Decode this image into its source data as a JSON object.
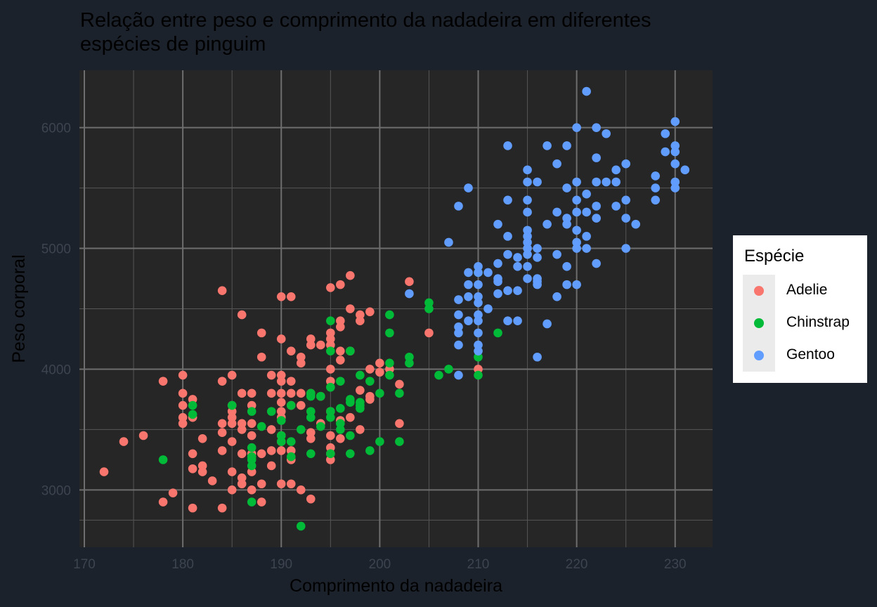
{
  "chart_data": {
    "type": "scatter",
    "title": "Relação entre peso e comprimento da nadadeira em diferentes\nespécies de pinguim",
    "xlabel": "Comprimento da nadadeira",
    "ylabel": "Peso corporal",
    "xlim": [
      169.5,
      233.8
    ],
    "ylim": [
      2525,
      6475
    ],
    "x_ticks": [
      170,
      180,
      190,
      200,
      210,
      220,
      230
    ],
    "y_ticks": [
      3000,
      4000,
      5000,
      6000
    ],
    "x_tick_labels": [
      "170",
      "180",
      "190",
      "200",
      "210",
      "220",
      "230"
    ],
    "y_tick_labels": [
      "3000",
      "4000",
      "5000",
      "6000"
    ],
    "grid": true,
    "legend_title": "Espécie",
    "legend_position": "right",
    "series": [
      {
        "name": "Adelie",
        "color": "#f8766d",
        "points": [
          [
            172,
            3150
          ],
          [
            174,
            3400
          ],
          [
            176,
            3450
          ],
          [
            178,
            3900
          ],
          [
            178,
            2900
          ],
          [
            179,
            2975
          ],
          [
            180,
            3950
          ],
          [
            180,
            3800
          ],
          [
            180,
            3700
          ],
          [
            180,
            3600
          ],
          [
            180,
            3550
          ],
          [
            181,
            3750
          ],
          [
            181,
            3600
          ],
          [
            181,
            3300
          ],
          [
            181,
            3175
          ],
          [
            181,
            2850
          ],
          [
            182,
            3200
          ],
          [
            182,
            3150
          ],
          [
            182,
            3425
          ],
          [
            183,
            3075
          ],
          [
            184,
            4650
          ],
          [
            184,
            3900
          ],
          [
            184,
            3550
          ],
          [
            184,
            3475
          ],
          [
            184,
            3325
          ],
          [
            184,
            2850
          ],
          [
            185,
            3950
          ],
          [
            185,
            3700
          ],
          [
            185,
            3650
          ],
          [
            185,
            3600
          ],
          [
            185,
            3550
          ],
          [
            185,
            3400
          ],
          [
            185,
            3150
          ],
          [
            185,
            3000
          ],
          [
            186,
            4450
          ],
          [
            186,
            3800
          ],
          [
            186,
            3550
          ],
          [
            186,
            3500
          ],
          [
            186,
            3300
          ],
          [
            186,
            3100
          ],
          [
            186,
            3050
          ],
          [
            187,
            3800
          ],
          [
            187,
            3700
          ],
          [
            187,
            3550
          ],
          [
            187,
            3450
          ],
          [
            187,
            3300
          ],
          [
            187,
            3150
          ],
          [
            187,
            3000
          ],
          [
            188,
            4300
          ],
          [
            188,
            4100
          ],
          [
            188,
            3300
          ],
          [
            188,
            3050
          ],
          [
            188,
            2900
          ],
          [
            189,
            3950
          ],
          [
            189,
            3800
          ],
          [
            189,
            3500
          ],
          [
            189,
            3325
          ],
          [
            189,
            3200
          ],
          [
            190,
            4600
          ],
          [
            190,
            4250
          ],
          [
            190,
            3950
          ],
          [
            190,
            3900
          ],
          [
            190,
            3800
          ],
          [
            190,
            3725
          ],
          [
            190,
            3650
          ],
          [
            190,
            3600
          ],
          [
            190,
            3450
          ],
          [
            190,
            3400
          ],
          [
            190,
            3325
          ],
          [
            190,
            3050
          ],
          [
            191,
            4600
          ],
          [
            191,
            4150
          ],
          [
            191,
            3900
          ],
          [
            191,
            3800
          ],
          [
            191,
            3700
          ],
          [
            191,
            3325
          ],
          [
            191,
            3250
          ],
          [
            191,
            3050
          ],
          [
            192,
            4100
          ],
          [
            192,
            4050
          ],
          [
            192,
            3800
          ],
          [
            192,
            3700
          ],
          [
            192,
            3000
          ],
          [
            193,
            4250
          ],
          [
            193,
            4200
          ],
          [
            193,
            3800
          ],
          [
            193,
            3475
          ],
          [
            193,
            3425
          ],
          [
            193,
            2925
          ],
          [
            194,
            4200
          ],
          [
            194,
            3775
          ],
          [
            194,
            3550
          ],
          [
            195,
            4675
          ],
          [
            195,
            4300
          ],
          [
            195,
            4250
          ],
          [
            195,
            4200
          ],
          [
            195,
            4000
          ],
          [
            195,
            3900
          ],
          [
            195,
            3650
          ],
          [
            195,
            3450
          ],
          [
            195,
            3350
          ],
          [
            195,
            3300
          ],
          [
            195,
            3250
          ],
          [
            196,
            4700
          ],
          [
            196,
            4400
          ],
          [
            196,
            4350
          ],
          [
            196,
            4150
          ],
          [
            196,
            4075
          ],
          [
            196,
            3575
          ],
          [
            196,
            3425
          ],
          [
            197,
            4775
          ],
          [
            197,
            4500
          ],
          [
            197,
            4150
          ],
          [
            197,
            3600
          ],
          [
            198,
            4450
          ],
          [
            198,
            4400
          ],
          [
            198,
            3825
          ],
          [
            198,
            3500
          ],
          [
            199,
            4475
          ],
          [
            199,
            4000
          ],
          [
            199,
            3775
          ],
          [
            199,
            3750
          ],
          [
            200,
            4050
          ],
          [
            200,
            3975
          ],
          [
            201,
            4000
          ],
          [
            202,
            3875
          ],
          [
            202,
            3550
          ],
          [
            203,
            4725
          ],
          [
            205,
            4300
          ],
          [
            210,
            4000
          ]
        ]
      },
      {
        "name": "Chinstrap",
        "color": "#00ba38",
        "points": [
          [
            178,
            3250
          ],
          [
            181,
            3700
          ],
          [
            181,
            3625
          ],
          [
            185,
            3700
          ],
          [
            187,
            3650
          ],
          [
            187,
            3350
          ],
          [
            187,
            3275
          ],
          [
            187,
            3250
          ],
          [
            187,
            3200
          ],
          [
            187,
            2900
          ],
          [
            188,
            3525
          ],
          [
            189,
            3650
          ],
          [
            190,
            3575
          ],
          [
            190,
            3450
          ],
          [
            190,
            3400
          ],
          [
            191,
            3700
          ],
          [
            191,
            3400
          ],
          [
            191,
            3275
          ],
          [
            192,
            3500
          ],
          [
            192,
            2700
          ],
          [
            193,
            3800
          ],
          [
            193,
            3775
          ],
          [
            193,
            3650
          ],
          [
            193,
            3600
          ],
          [
            193,
            3300
          ],
          [
            194,
            3775
          ],
          [
            194,
            3525
          ],
          [
            195,
            4400
          ],
          [
            195,
            4150
          ],
          [
            195,
            3850
          ],
          [
            195,
            3650
          ],
          [
            195,
            3600
          ],
          [
            195,
            3300
          ],
          [
            196,
            3900
          ],
          [
            196,
            3675
          ],
          [
            196,
            3550
          ],
          [
            196,
            3500
          ],
          [
            197,
            4150
          ],
          [
            197,
            3750
          ],
          [
            197,
            3725
          ],
          [
            197,
            3450
          ],
          [
            197,
            3300
          ],
          [
            198,
            3950
          ],
          [
            198,
            3725
          ],
          [
            198,
            3700
          ],
          [
            198,
            3675
          ],
          [
            199,
            3900
          ],
          [
            199,
            3325
          ],
          [
            200,
            3800
          ],
          [
            200,
            3400
          ],
          [
            201,
            4450
          ],
          [
            201,
            4300
          ],
          [
            201,
            4050
          ],
          [
            201,
            3950
          ],
          [
            202,
            3800
          ],
          [
            202,
            3400
          ],
          [
            203,
            4100
          ],
          [
            203,
            4050
          ],
          [
            205,
            4550
          ],
          [
            205,
            4500
          ],
          [
            206,
            3950
          ],
          [
            207,
            4000
          ],
          [
            210,
            4800
          ],
          [
            210,
            4100
          ],
          [
            210,
            3950
          ],
          [
            212,
            4300
          ]
        ]
      },
      {
        "name": "Gentoo",
        "color": "#619cff",
        "points": [
          [
            203,
            4625
          ],
          [
            207,
            5050
          ],
          [
            208,
            5350
          ],
          [
            208,
            4575
          ],
          [
            208,
            4450
          ],
          [
            208,
            4350
          ],
          [
            208,
            4300
          ],
          [
            208,
            4200
          ],
          [
            208,
            3950
          ],
          [
            209,
            5500
          ],
          [
            209,
            4800
          ],
          [
            209,
            4700
          ],
          [
            209,
            4600
          ],
          [
            209,
            4400
          ],
          [
            210,
            4850
          ],
          [
            210,
            4800
          ],
          [
            210,
            4700
          ],
          [
            210,
            4600
          ],
          [
            210,
            4550
          ],
          [
            210,
            4450
          ],
          [
            210,
            4400
          ],
          [
            210,
            4300
          ],
          [
            210,
            4200
          ],
          [
            210,
            4150
          ],
          [
            211,
            4800
          ],
          [
            211,
            4500
          ],
          [
            212,
            5200
          ],
          [
            212,
            4875
          ],
          [
            212,
            4750
          ],
          [
            212,
            4725
          ],
          [
            212,
            4625
          ],
          [
            213,
            5850
          ],
          [
            213,
            5400
          ],
          [
            213,
            5100
          ],
          [
            213,
            4950
          ],
          [
            213,
            4650
          ],
          [
            213,
            4400
          ],
          [
            214,
            4925
          ],
          [
            214,
            4850
          ],
          [
            214,
            4650
          ],
          [
            214,
            4400
          ],
          [
            215,
            5650
          ],
          [
            215,
            5550
          ],
          [
            215,
            5400
          ],
          [
            215,
            5300
          ],
          [
            215,
            5150
          ],
          [
            215,
            5100
          ],
          [
            215,
            5050
          ],
          [
            215,
            5000
          ],
          [
            215,
            4950
          ],
          [
            215,
            4850
          ],
          [
            215,
            4750
          ],
          [
            216,
            5550
          ],
          [
            216,
            5000
          ],
          [
            216,
            4925
          ],
          [
            216,
            4750
          ],
          [
            216,
            4725
          ],
          [
            216,
            4700
          ],
          [
            216,
            4100
          ],
          [
            217,
            5850
          ],
          [
            217,
            5200
          ],
          [
            217,
            4375
          ],
          [
            218,
            5700
          ],
          [
            218,
            5300
          ],
          [
            218,
            4950
          ],
          [
            218,
            4600
          ],
          [
            219,
            5850
          ],
          [
            219,
            5500
          ],
          [
            219,
            5250
          ],
          [
            219,
            5200
          ],
          [
            219,
            4850
          ],
          [
            219,
            4700
          ],
          [
            220,
            6000
          ],
          [
            220,
            5550
          ],
          [
            220,
            5400
          ],
          [
            220,
            5300
          ],
          [
            220,
            5150
          ],
          [
            220,
            5050
          ],
          [
            220,
            5000
          ],
          [
            220,
            4700
          ],
          [
            221,
            6300
          ],
          [
            221,
            5450
          ],
          [
            221,
            5300
          ],
          [
            221,
            5100
          ],
          [
            221,
            5000
          ],
          [
            222,
            6000
          ],
          [
            222,
            5750
          ],
          [
            222,
            5550
          ],
          [
            222,
            5350
          ],
          [
            222,
            5250
          ],
          [
            222,
            4875
          ],
          [
            223,
            5950
          ],
          [
            223,
            5550
          ],
          [
            224,
            5650
          ],
          [
            224,
            5550
          ],
          [
            224,
            5350
          ],
          [
            225,
            5700
          ],
          [
            225,
            5400
          ],
          [
            225,
            5250
          ],
          [
            225,
            5000
          ],
          [
            226,
            5200
          ],
          [
            228,
            5600
          ],
          [
            228,
            5500
          ],
          [
            228,
            5400
          ],
          [
            229,
            5950
          ],
          [
            229,
            5800
          ],
          [
            230,
            6050
          ],
          [
            230,
            5850
          ],
          [
            230,
            5800
          ],
          [
            230,
            5700
          ],
          [
            230,
            5550
          ],
          [
            230,
            5500
          ],
          [
            231,
            5650
          ]
        ]
      }
    ]
  }
}
